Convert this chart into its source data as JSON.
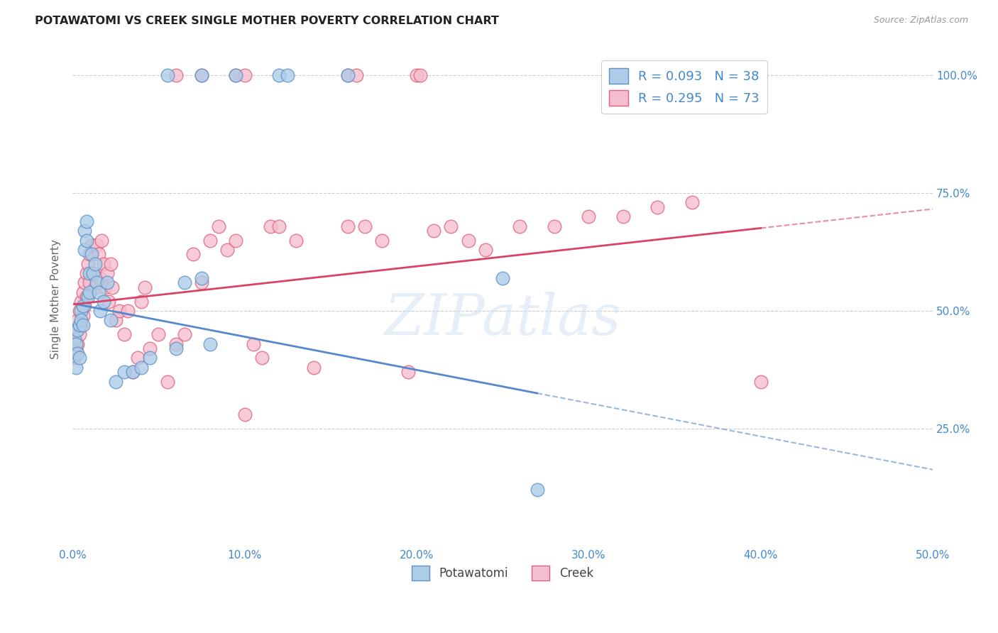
{
  "title": "POTAWATOMI VS CREEK SINGLE MOTHER POVERTY CORRELATION CHART",
  "source": "Source: ZipAtlas.com",
  "ylabel": "Single Mother Poverty",
  "watermark": "ZIPatlas",
  "potawatomi_color": "#aecce8",
  "potawatomi_edge": "#5b92c8",
  "creek_color": "#f5bece",
  "creek_edge": "#e0607a",
  "trend_potawatomi_color": "#5588cc",
  "trend_creek_color": "#d94466",
  "xlim": [
    0.0,
    0.5
  ],
  "ylim": [
    0.0,
    1.05
  ],
  "xtick_positions": [
    0.0,
    0.1,
    0.2,
    0.3,
    0.4,
    0.5
  ],
  "ytick_positions": [
    0.25,
    0.5,
    0.75,
    1.0
  ],
  "grid_color": "#cccccc",
  "background_color": "#ffffff",
  "tick_label_color": "#4488cc",
  "potawatomi_x": [
    0.001,
    0.002,
    0.002,
    0.003,
    0.003,
    0.004,
    0.004,
    0.005,
    0.005,
    0.006,
    0.006,
    0.007,
    0.007,
    0.008,
    0.008,
    0.009,
    0.01,
    0.01,
    0.011,
    0.012,
    0.013,
    0.014,
    0.015,
    0.016,
    0.018,
    0.02,
    0.022,
    0.025,
    0.03,
    0.035,
    0.04,
    0.045,
    0.06,
    0.065,
    0.075,
    0.08,
    0.25,
    0.27
  ],
  "potawatomi_y": [
    0.44,
    0.43,
    0.38,
    0.46,
    0.41,
    0.47,
    0.4,
    0.5,
    0.48,
    0.51,
    0.47,
    0.67,
    0.63,
    0.69,
    0.65,
    0.53,
    0.58,
    0.54,
    0.62,
    0.58,
    0.6,
    0.56,
    0.54,
    0.5,
    0.52,
    0.56,
    0.48,
    0.35,
    0.37,
    0.37,
    0.38,
    0.4,
    0.42,
    0.56,
    0.57,
    0.43,
    0.57,
    0.12
  ],
  "creek_x": [
    0.001,
    0.001,
    0.002,
    0.002,
    0.003,
    0.003,
    0.004,
    0.004,
    0.005,
    0.005,
    0.006,
    0.006,
    0.007,
    0.007,
    0.008,
    0.008,
    0.009,
    0.01,
    0.01,
    0.011,
    0.012,
    0.013,
    0.014,
    0.015,
    0.016,
    0.017,
    0.018,
    0.019,
    0.02,
    0.021,
    0.022,
    0.023,
    0.025,
    0.027,
    0.03,
    0.032,
    0.035,
    0.038,
    0.04,
    0.042,
    0.045,
    0.05,
    0.055,
    0.06,
    0.065,
    0.07,
    0.075,
    0.08,
    0.085,
    0.09,
    0.095,
    0.1,
    0.105,
    0.11,
    0.115,
    0.12,
    0.13,
    0.14,
    0.16,
    0.17,
    0.18,
    0.195,
    0.21,
    0.22,
    0.23,
    0.24,
    0.26,
    0.28,
    0.3,
    0.32,
    0.34,
    0.36,
    0.4
  ],
  "creek_y": [
    0.44,
    0.4,
    0.46,
    0.42,
    0.48,
    0.43,
    0.5,
    0.45,
    0.52,
    0.47,
    0.54,
    0.49,
    0.56,
    0.51,
    0.58,
    0.53,
    0.6,
    0.62,
    0.56,
    0.64,
    0.58,
    0.55,
    0.64,
    0.62,
    0.57,
    0.65,
    0.6,
    0.55,
    0.58,
    0.52,
    0.6,
    0.55,
    0.48,
    0.5,
    0.45,
    0.5,
    0.37,
    0.4,
    0.52,
    0.55,
    0.42,
    0.45,
    0.35,
    0.43,
    0.45,
    0.62,
    0.56,
    0.65,
    0.68,
    0.63,
    0.65,
    0.28,
    0.43,
    0.4,
    0.68,
    0.68,
    0.65,
    0.38,
    0.68,
    0.68,
    0.65,
    0.37,
    0.67,
    0.68,
    0.65,
    0.63,
    0.68,
    0.68,
    0.7,
    0.7,
    0.72,
    0.73,
    0.35
  ],
  "creek_top_x": [
    0.06,
    0.075,
    0.095,
    0.1,
    0.16,
    0.165,
    0.2,
    0.202
  ],
  "creek_top_y": [
    1.0,
    1.0,
    1.0,
    1.0,
    1.0,
    1.0,
    1.0,
    1.0
  ],
  "pot_top_x": [
    0.055,
    0.075,
    0.095,
    0.12,
    0.125,
    0.16
  ],
  "pot_top_y": [
    1.0,
    1.0,
    1.0,
    1.0,
    1.0,
    1.0
  ]
}
